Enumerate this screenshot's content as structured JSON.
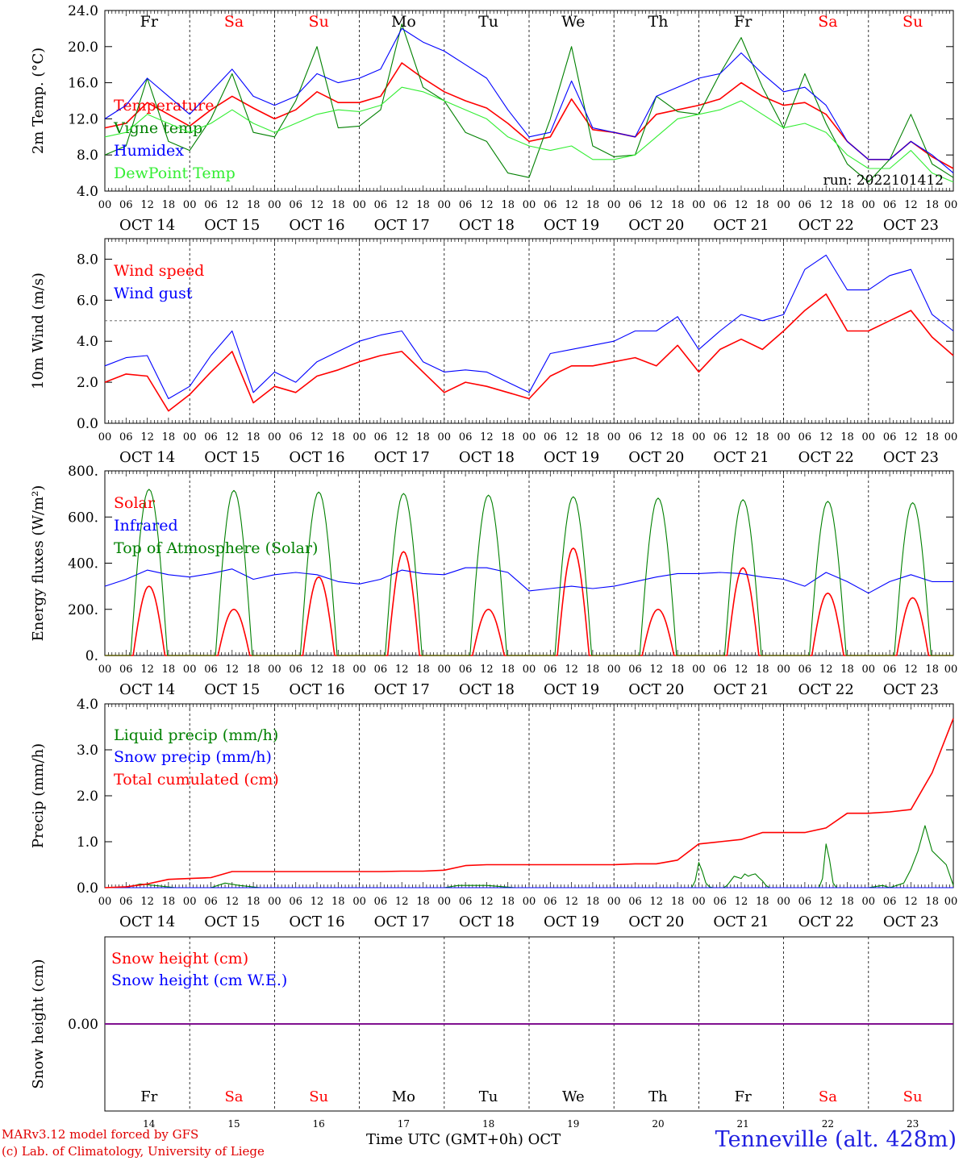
{
  "footer": {
    "model_line": "MARv3.12 model forced by GFS",
    "copyright_line": "(c) Lab. of Climatology, University of Liege",
    "x_title": "Time UTC (GMT+0h)",
    "month": "OCT",
    "station": "Tenneville (alt. 428m)"
  },
  "days": {
    "weekdays": [
      "Fr",
      "Sa",
      "Su",
      "Mo",
      "Tu",
      "We",
      "Th",
      "Fr",
      "Sa",
      "Su"
    ],
    "weekend_flags": [
      false,
      true,
      true,
      false,
      false,
      false,
      false,
      false,
      true,
      true
    ],
    "dates": [
      "OCT 14",
      "OCT 15",
      "OCT 16",
      "OCT 17",
      "OCT 18",
      "OCT 19",
      "OCT 20",
      "OCT 21",
      "OCT 22",
      "OCT 23"
    ],
    "day_numbers": [
      "14",
      "15",
      "16",
      "17",
      "18",
      "19",
      "20",
      "21",
      "22",
      "23"
    ],
    "hour_labels": [
      "00",
      "06",
      "12",
      "18"
    ],
    "final_hour_label": "00"
  },
  "colors": {
    "red": "#ff0000",
    "dark_green": "#008000",
    "blue": "#0000ff",
    "light_green": "#33ee33",
    "purple": "#800080",
    "weekday_text": "#000000",
    "weekend_text": "#ff0000"
  },
  "chart_data": [
    {
      "type": "line",
      "ylabel": "2m Temp. (°C)",
      "ylim": [
        4.0,
        24.0
      ],
      "yticks": [
        "4.0",
        "8.0",
        "12.0",
        "16.0",
        "20.0",
        "24.0"
      ],
      "annotation": "run: 2022101412",
      "x": [
        0,
        6,
        12,
        18,
        24,
        30,
        36,
        42,
        48,
        54,
        60,
        66,
        72,
        78,
        84,
        90,
        96,
        102,
        108,
        114,
        120,
        126,
        132,
        138,
        144,
        150,
        156,
        162,
        168,
        174,
        180,
        186,
        192,
        198,
        204,
        210,
        216,
        222,
        228,
        234,
        240
      ],
      "series": [
        {
          "name": "Temperature",
          "color": "red",
          "values": [
            11.0,
            11.5,
            13.8,
            12.5,
            11.2,
            13.0,
            14.5,
            13.2,
            12.0,
            13.0,
            15.0,
            13.8,
            13.8,
            14.5,
            18.2,
            16.5,
            15.0,
            14.0,
            13.2,
            11.5,
            9.5,
            10.0,
            14.2,
            10.8,
            10.5,
            10.0,
            12.5,
            13.0,
            13.5,
            14.2,
            16.0,
            14.5,
            13.5,
            13.8,
            12.5,
            9.5,
            7.5,
            7.5,
            9.5,
            7.8,
            6.5
          ]
        },
        {
          "name": "Vigne temp",
          "color": "dark_green",
          "values": [
            8.0,
            9.0,
            16.5,
            9.5,
            8.5,
            12.0,
            17.0,
            10.5,
            10.0,
            14.0,
            20.0,
            11.0,
            11.2,
            13.0,
            22.5,
            15.5,
            14.0,
            10.5,
            9.5,
            6.0,
            5.5,
            12.0,
            20.0,
            9.0,
            7.8,
            8.0,
            14.5,
            12.8,
            12.5,
            17.0,
            21.0,
            15.5,
            11.0,
            17.0,
            11.5,
            7.0,
            5.0,
            7.5,
            12.5,
            7.0,
            5.5
          ]
        },
        {
          "name": "Humidex",
          "color": "blue",
          "values": [
            12.0,
            13.5,
            16.5,
            14.5,
            12.5,
            15.0,
            17.5,
            14.5,
            13.5,
            14.5,
            17.0,
            16.0,
            16.5,
            17.5,
            22.0,
            20.5,
            19.5,
            18.0,
            16.5,
            13.0,
            10.0,
            10.5,
            16.2,
            11.0,
            10.5,
            10.0,
            14.5,
            15.5,
            16.5,
            17.0,
            19.3,
            17.0,
            15.0,
            15.5,
            13.5,
            9.5,
            7.5,
            7.5,
            9.5,
            8.0,
            6.0
          ]
        },
        {
          "name": "DewPoint Temp",
          "color": "light_green",
          "values": [
            10.0,
            10.5,
            12.5,
            11.5,
            10.5,
            11.5,
            13.0,
            11.5,
            10.5,
            11.5,
            12.5,
            13.0,
            12.8,
            13.5,
            15.5,
            15.0,
            14.0,
            13.0,
            12.0,
            10.0,
            9.0,
            8.5,
            9.0,
            7.5,
            7.5,
            8.0,
            10.0,
            12.0,
            12.5,
            13.0,
            14.0,
            12.5,
            11.0,
            11.5,
            10.5,
            8.0,
            6.5,
            6.5,
            8.5,
            6.0,
            5.0
          ]
        }
      ]
    },
    {
      "type": "line",
      "ylabel": "10m Wind (m/s)",
      "ylim": [
        0.0,
        9.0
      ],
      "yticks": [
        "0.0",
        "2.0",
        "4.0",
        "6.0",
        "8.0"
      ],
      "ref_line": 5.0,
      "x": [
        0,
        6,
        12,
        18,
        24,
        30,
        36,
        42,
        48,
        54,
        60,
        66,
        72,
        78,
        84,
        90,
        96,
        102,
        108,
        114,
        120,
        126,
        132,
        138,
        144,
        150,
        156,
        162,
        168,
        174,
        180,
        186,
        192,
        198,
        204,
        210,
        216,
        222,
        228,
        234,
        240
      ],
      "series": [
        {
          "name": "Wind speed",
          "color": "red",
          "values": [
            2.0,
            2.4,
            2.3,
            0.6,
            1.4,
            2.5,
            3.5,
            1.0,
            1.8,
            1.5,
            2.3,
            2.6,
            3.0,
            3.3,
            3.5,
            2.5,
            1.5,
            2.0,
            1.8,
            1.5,
            1.2,
            2.3,
            2.8,
            2.8,
            3.0,
            3.2,
            2.8,
            3.8,
            2.5,
            3.6,
            4.1,
            3.6,
            4.5,
            5.5,
            6.3,
            4.5,
            4.5,
            5.0,
            5.5,
            4.2,
            3.3
          ]
        },
        {
          "name": "Wind gust",
          "color": "blue",
          "values": [
            2.8,
            3.2,
            3.3,
            1.2,
            1.8,
            3.3,
            4.5,
            1.5,
            2.5,
            2.0,
            3.0,
            3.5,
            4.0,
            4.3,
            4.5,
            3.0,
            2.5,
            2.6,
            2.5,
            2.0,
            1.5,
            3.4,
            3.6,
            3.8,
            4.0,
            4.5,
            4.5,
            5.2,
            3.6,
            4.5,
            5.3,
            5.0,
            5.3,
            7.5,
            8.2,
            6.5,
            6.5,
            7.2,
            7.5,
            5.3,
            4.5
          ]
        }
      ]
    },
    {
      "type": "line",
      "ylabel": "Energy fluxes (W/m²)",
      "ylim": [
        0,
        800
      ],
      "yticks": [
        "0.",
        "200.",
        "400.",
        "600.",
        "800."
      ],
      "series": [
        {
          "name": "Solar",
          "color": "red",
          "day_peaks": [
            300,
            200,
            340,
            450,
            200,
            465,
            200,
            380,
            270,
            250
          ]
        },
        {
          "name": "Infrared",
          "color": "blue",
          "x": [
            0,
            6,
            12,
            18,
            24,
            30,
            36,
            42,
            48,
            54,
            60,
            66,
            72,
            78,
            84,
            90,
            96,
            102,
            108,
            114,
            120,
            126,
            132,
            138,
            144,
            150,
            156,
            162,
            168,
            174,
            180,
            186,
            192,
            198,
            204,
            210,
            216,
            222,
            228,
            234,
            240
          ],
          "values": [
            300,
            330,
            370,
            350,
            340,
            355,
            375,
            330,
            350,
            360,
            350,
            320,
            310,
            330,
            370,
            355,
            350,
            380,
            380,
            360,
            280,
            290,
            300,
            290,
            300,
            320,
            340,
            355,
            355,
            360,
            355,
            340,
            330,
            300,
            360,
            320,
            270,
            320,
            350,
            320,
            320
          ]
        },
        {
          "name": "Top of Atmosphere (Solar)",
          "color": "dark_green",
          "day_peaks": [
            720,
            715,
            708,
            702,
            695,
            688,
            682,
            675,
            668,
            662
          ]
        }
      ]
    },
    {
      "type": "line",
      "ylabel": "Precip (mm/h)",
      "ylim": [
        0.0,
        4.0
      ],
      "yticks": [
        "0.0",
        "1.0",
        "2.0",
        "3.0",
        "4.0"
      ],
      "series": [
        {
          "name": "Liquid precip (mm/h)",
          "color": "dark_green",
          "x": [
            0,
            6,
            10,
            14,
            20,
            24,
            30,
            34,
            38,
            44,
            96,
            100,
            108,
            116,
            120,
            166,
            167,
            168,
            169,
            170,
            171,
            172,
            173,
            174,
            175,
            176,
            177,
            178,
            180,
            181,
            182,
            183,
            184,
            185,
            186,
            187,
            188,
            190,
            202,
            203,
            204,
            205,
            206,
            207,
            208,
            216,
            220,
            222,
            226,
            228,
            230,
            232,
            234,
            238,
            240
          ],
          "values": [
            0,
            0,
            0.08,
            0.05,
            0,
            0,
            0,
            0.1,
            0.05,
            0,
            0,
            0.05,
            0.05,
            0,
            0,
            0,
            0.15,
            0.55,
            0.35,
            0.1,
            0.02,
            0,
            0,
            0,
            0,
            0.05,
            0.15,
            0.25,
            0.2,
            0.3,
            0.25,
            0.28,
            0.3,
            0.22,
            0.15,
            0.05,
            0,
            0,
            0,
            0.2,
            0.95,
            0.6,
            0.1,
            0,
            0,
            0,
            0.05,
            0,
            0.1,
            0.4,
            0.8,
            1.35,
            0.8,
            0.5,
            0.05
          ]
        },
        {
          "name": "Snow precip (mm/h)",
          "color": "blue",
          "x": [
            0,
            240
          ],
          "values": [
            0,
            0
          ]
        },
        {
          "name": "Total cumulated (cm)",
          "color": "red",
          "x": [
            0,
            6,
            12,
            18,
            24,
            30,
            36,
            42,
            48,
            54,
            60,
            66,
            72,
            78,
            84,
            90,
            96,
            102,
            108,
            114,
            120,
            126,
            132,
            138,
            144,
            150,
            156,
            162,
            168,
            174,
            180,
            186,
            192,
            198,
            204,
            210,
            216,
            222,
            228,
            234,
            240
          ],
          "values": [
            0.0,
            0.02,
            0.08,
            0.18,
            0.2,
            0.22,
            0.35,
            0.35,
            0.35,
            0.35,
            0.35,
            0.35,
            0.35,
            0.35,
            0.36,
            0.36,
            0.38,
            0.48,
            0.5,
            0.5,
            0.5,
            0.5,
            0.5,
            0.5,
            0.5,
            0.52,
            0.52,
            0.6,
            0.95,
            1.0,
            1.05,
            1.2,
            1.2,
            1.2,
            1.3,
            1.62,
            1.62,
            1.65,
            1.7,
            2.5,
            3.68
          ]
        }
      ]
    },
    {
      "type": "line",
      "ylabel": "Snow height (cm)",
      "ylim": [
        -1.0,
        1.0
      ],
      "yticks": [
        "0.00"
      ],
      "series": [
        {
          "name": "Snow height (cm)",
          "color": "red",
          "x": [
            0,
            240
          ],
          "values": [
            0,
            0
          ]
        },
        {
          "name": "Snow height (cm W.E.)",
          "color": "blue",
          "x": [
            0,
            240
          ],
          "values": [
            0,
            0
          ]
        }
      ]
    }
  ]
}
